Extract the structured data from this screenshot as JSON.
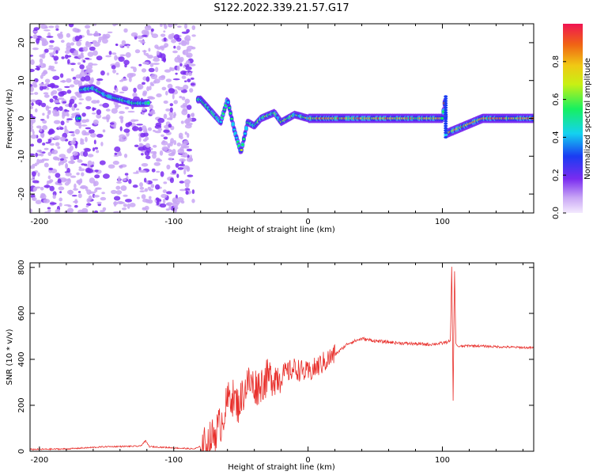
{
  "figure_title": "S122.2022.339.21.57.G17",
  "chart_data": [
    {
      "type": "heatmap",
      "xlabel": "Height of straight line (km)",
      "ylabel": "Frequency (Hz)",
      "xlim": [
        -207,
        168
      ],
      "ylim": [
        -25,
        25
      ],
      "x_ticks": [
        -200,
        -100,
        0,
        100
      ],
      "y_ticks": [
        -20,
        -10,
        0,
        10,
        20
      ],
      "colorbar": {
        "label": "Normalized spectral amplitude",
        "range": [
          0,
          1
        ],
        "ticks": [
          0.0,
          0.2,
          0.4,
          0.6,
          0.8
        ],
        "colors": [
          "#f4eafe",
          "#c9a7f5",
          "#7a2cf0",
          "#1a3cf2",
          "#14d2f0",
          "#16f060",
          "#c8f014",
          "#f0c814",
          "#f06414",
          "#f01452"
        ]
      },
      "grid": false,
      "ridge": [
        {
          "x": -170,
          "y": 7.5
        },
        {
          "x": -160,
          "y": 8
        },
        {
          "x": -150,
          "y": 6
        },
        {
          "x": -140,
          "y": 5
        },
        {
          "x": -130,
          "y": 4
        },
        {
          "x": -122,
          "y": 4
        },
        {
          "x": -80,
          "y": 5
        },
        {
          "x": -75,
          "y": 3
        },
        {
          "x": -70,
          "y": 1
        },
        {
          "x": -65,
          "y": -1
        },
        {
          "x": -60,
          "y": 5
        },
        {
          "x": -55,
          "y": -3
        },
        {
          "x": -50,
          "y": -9
        },
        {
          "x": -45,
          "y": -1
        },
        {
          "x": -40,
          "y": -2
        },
        {
          "x": -35,
          "y": 0
        },
        {
          "x": -25,
          "y": 1.5
        },
        {
          "x": -20,
          "y": -1
        },
        {
          "x": -10,
          "y": 1
        },
        {
          "x": 0,
          "y": 0
        },
        {
          "x": 20,
          "y": 0
        },
        {
          "x": 60,
          "y": 0
        },
        {
          "x": 100,
          "y": 0
        },
        {
          "x": 102,
          "y": 5
        },
        {
          "x": 103,
          "y": -4
        },
        {
          "x": 130,
          "y": 0
        },
        {
          "x": 168,
          "y": 0
        }
      ]
    },
    {
      "type": "line",
      "xlabel": "Height of straight line (km)",
      "ylabel": "SNR (10 * v/v)",
      "xlim": [
        -207,
        168
      ],
      "ylim": [
        0,
        820
      ],
      "x_ticks": [
        -200,
        -100,
        0,
        100
      ],
      "y_ticks": [
        0,
        200,
        400,
        600,
        800
      ],
      "grid": false,
      "series": [
        {
          "color": "#e8302c",
          "x": [
            -207,
            -180,
            -150,
            -125,
            -121,
            -118,
            -100,
            -85,
            -75,
            -65,
            -58,
            -52,
            -45,
            -38,
            -30,
            -20,
            -10,
            0,
            10,
            20,
            30,
            40,
            50,
            70,
            90,
            100,
            106,
            107,
            108,
            109,
            110,
            111,
            112,
            120,
            140,
            168
          ],
          "y": [
            8,
            10,
            20,
            22,
            45,
            20,
            15,
            10,
            30,
            120,
            250,
            200,
            300,
            280,
            320,
            330,
            360,
            340,
            380,
            420,
            470,
            490,
            480,
            470,
            465,
            470,
            480,
            820,
            220,
            800,
            470,
            460,
            455,
            460,
            455,
            450
          ]
        }
      ]
    }
  ]
}
